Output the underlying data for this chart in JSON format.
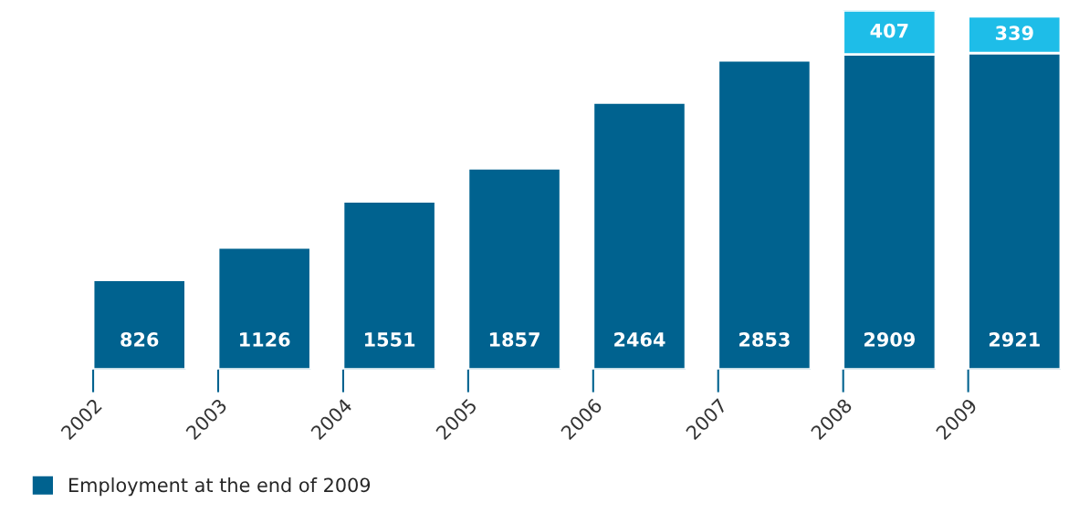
{
  "chart_data": {
    "type": "bar",
    "stacked": true,
    "categories": [
      "2002",
      "2003",
      "2004",
      "2005",
      "2006",
      "2007",
      "2008",
      "2009"
    ],
    "series": [
      {
        "name": "Employment at the end of 2009",
        "color": "#00628f",
        "values": [
          826,
          1126,
          1551,
          1857,
          2464,
          2853,
          2909,
          2921
        ]
      },
      {
        "color": "#1ebde8",
        "values": [
          null,
          null,
          null,
          null,
          null,
          null,
          407,
          339
        ]
      }
    ],
    "data_labels": true,
    "legend": "bottom left",
    "grid": false
  }
}
